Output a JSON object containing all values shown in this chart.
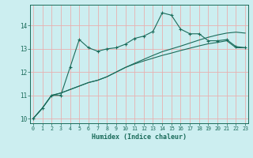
{
  "xlabel": "Humidex (Indice chaleur)",
  "background_color": "#cceef0",
  "grid_color": "#e8b0b0",
  "line_color": "#1a6b5a",
  "x_values": [
    0,
    1,
    2,
    3,
    4,
    5,
    6,
    7,
    8,
    9,
    10,
    11,
    12,
    13,
    14,
    15,
    16,
    17,
    18,
    19,
    20,
    21,
    22,
    23
  ],
  "line1": [
    10.0,
    10.45,
    11.0,
    11.0,
    12.2,
    13.4,
    13.05,
    12.9,
    13.0,
    13.05,
    13.2,
    13.45,
    13.55,
    13.75,
    14.55,
    14.45,
    13.85,
    13.65,
    13.65,
    13.35,
    13.35,
    13.4,
    13.1,
    13.05
  ],
  "line2": [
    10.0,
    10.45,
    11.0,
    11.1,
    11.25,
    11.4,
    11.55,
    11.65,
    11.8,
    12.0,
    12.2,
    12.38,
    12.55,
    12.72,
    12.88,
    13.0,
    13.12,
    13.25,
    13.38,
    13.5,
    13.6,
    13.68,
    13.72,
    13.68
  ],
  "line3": [
    10.0,
    10.45,
    11.0,
    11.1,
    11.25,
    11.4,
    11.55,
    11.65,
    11.8,
    12.0,
    12.2,
    12.35,
    12.48,
    12.6,
    12.72,
    12.82,
    12.93,
    13.03,
    13.13,
    13.22,
    13.28,
    13.35,
    13.05,
    13.05
  ],
  "ylim": [
    9.8,
    14.9
  ],
  "yticks": [
    10,
    11,
    12,
    13,
    14
  ],
  "xticks": [
    0,
    1,
    2,
    3,
    4,
    5,
    6,
    7,
    8,
    9,
    10,
    11,
    12,
    13,
    14,
    15,
    16,
    17,
    18,
    19,
    20,
    21,
    22,
    23
  ]
}
